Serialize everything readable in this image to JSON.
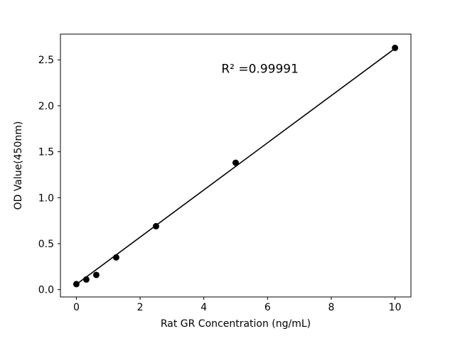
{
  "chart_data": {
    "type": "scatter",
    "title": "",
    "xlabel": "Rat GR Concentration (ng/mL)",
    "ylabel": "OD Value(450nm)",
    "annotation": "R² =0.99991",
    "annotation_xy": [
      4.55,
      2.36
    ],
    "x": [
      0,
      0.3125,
      0.625,
      1.25,
      2.5,
      5,
      10
    ],
    "y": [
      0.06,
      0.11,
      0.16,
      0.35,
      0.69,
      1.38,
      2.63
    ],
    "fit_line": {
      "slope": 0.2567,
      "intercept": 0.057
    },
    "x_ticks": [
      "0",
      "2",
      "4",
      "6",
      "8",
      "10"
    ],
    "y_ticks": [
      "0.0",
      "0.5",
      "1.0",
      "1.5",
      "2.0",
      "2.5"
    ],
    "xlim": [
      -0.5,
      10.5
    ],
    "ylim": [
      -0.08,
      2.78
    ],
    "grid": false,
    "legend": "none",
    "marker_color": "#000000",
    "line_color": "#000000",
    "axis_color": "#000000",
    "background": "#ffffff"
  }
}
